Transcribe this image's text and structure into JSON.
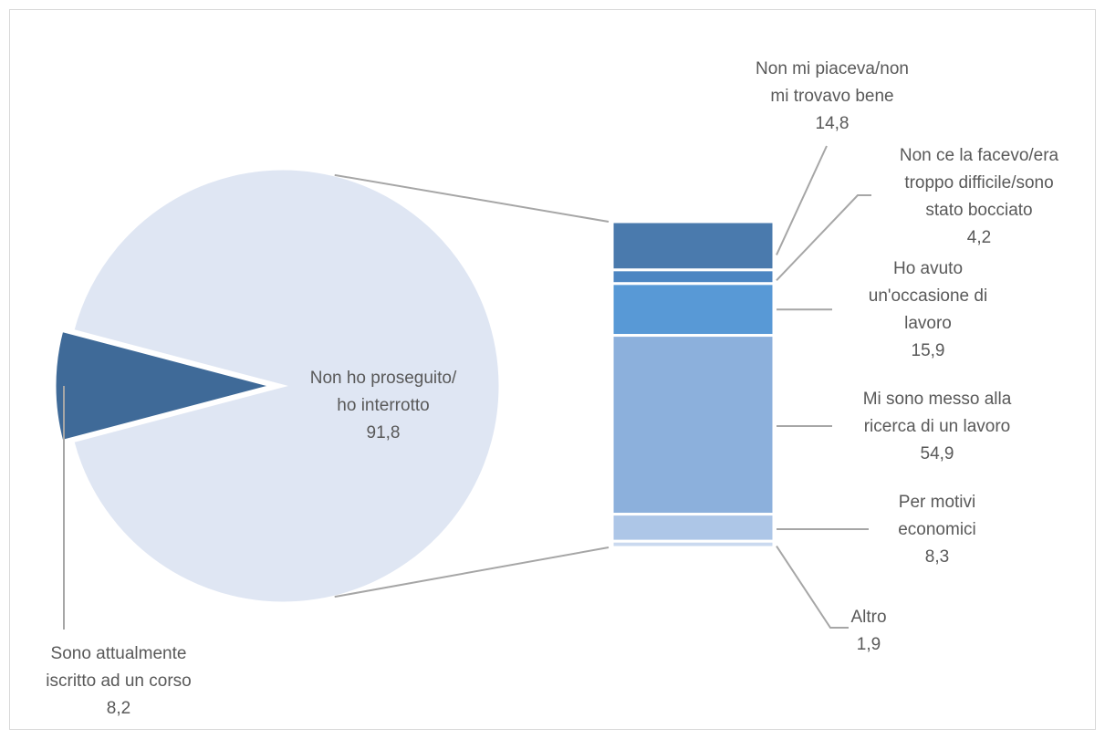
{
  "chart_data": {
    "type": "bar-of-pie",
    "pie": {
      "slices": [
        {
          "name": "Non ho proseguito/ ho interrotto",
          "label_lines": [
            "Non ho proseguito/",
            "ho interrotto"
          ],
          "value_label": "91,8",
          "value": 91.8,
          "color": "#dfe6f3"
        },
        {
          "name": "Sono attualmente iscritto ad un corso",
          "label_lines": [
            "Sono attualmente",
            "iscritto ad un corso"
          ],
          "value_label": "8,2",
          "value": 8.2,
          "color": "#3f6a98"
        }
      ]
    },
    "bar": {
      "segments": [
        {
          "name": "Non mi piaceva/non mi trovavo bene",
          "label_lines": [
            "Non mi piaceva/non",
            "mi trovavo bene"
          ],
          "value_label": "14,8",
          "value": 14.8,
          "color": "#4a7aad"
        },
        {
          "name": "Non ce la facevo/era troppo difficile/sono stato bocciato",
          "label_lines": [
            "Non ce la facevo/era",
            "troppo difficile/sono",
            "stato bocciato"
          ],
          "value_label": "4,2",
          "value": 4.2,
          "color": "#4d86c2"
        },
        {
          "name": "Ho avuto un'occasione di lavoro",
          "label_lines": [
            "Ho avuto",
            "un'occasione di",
            "lavoro"
          ],
          "value_label": "15,9",
          "value": 15.9,
          "color": "#5899d6"
        },
        {
          "name": "Mi sono messo alla ricerca di un lavoro",
          "label_lines": [
            "Mi sono messo alla",
            "ricerca di un lavoro"
          ],
          "value_label": "54,9",
          "value": 54.9,
          "color": "#8cb0dc"
        },
        {
          "name": "Per motivi economici",
          "label_lines": [
            "Per motivi",
            "economici"
          ],
          "value_label": "8,3",
          "value": 8.3,
          "color": "#adc6e7"
        },
        {
          "name": "Altro",
          "label_lines": [
            "Altro"
          ],
          "value_label": "1,9",
          "value": 1.9,
          "color": "#cad9ef"
        }
      ]
    },
    "colors": {
      "connector": "#a6a6a6",
      "leader": "#a6a6a6",
      "text": "#595959",
      "separator": "#ffffff"
    }
  }
}
